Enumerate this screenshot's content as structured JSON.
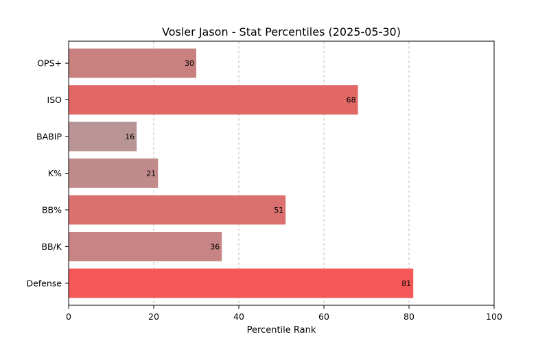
{
  "chart_data": {
    "type": "bar",
    "orientation": "horizontal",
    "title": "Vosler Jason - Stat Percentiles (2025-05-30)",
    "xlabel": "Percentile Rank",
    "ylabel": "",
    "xlim": [
      0,
      100
    ],
    "xticks": [
      0,
      20,
      40,
      60,
      80,
      100
    ],
    "grid": "x-dashed",
    "categories": [
      "OPS+",
      "ISO",
      "BABIP",
      "K%",
      "BB%",
      "BB/K",
      "Defense"
    ],
    "values": [
      30,
      68,
      16,
      21,
      51,
      36,
      81
    ],
    "colors": [
      "#c8817f",
      "#e26866",
      "#b89594",
      "#c08b8a",
      "#da7170",
      "#c68584",
      "#f45857"
    ]
  }
}
